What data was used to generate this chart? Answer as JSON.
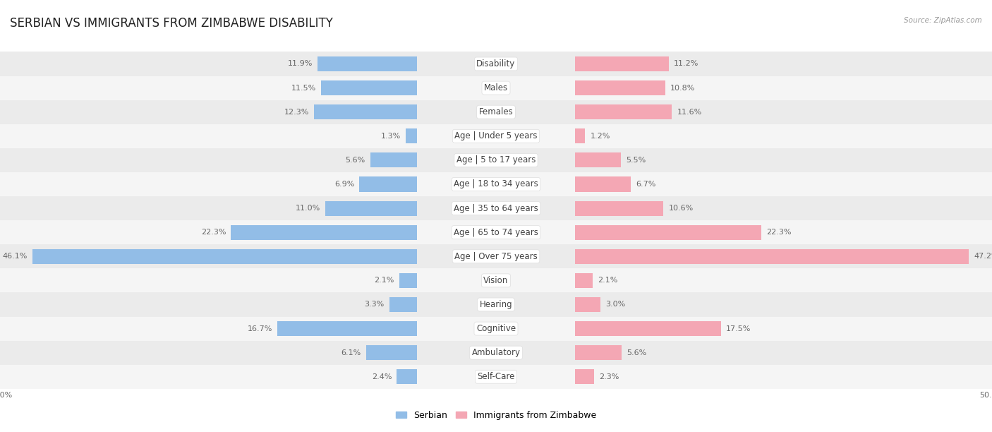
{
  "title": "SERBIAN VS IMMIGRANTS FROM ZIMBABWE DISABILITY",
  "source": "Source: ZipAtlas.com",
  "categories": [
    "Disability",
    "Males",
    "Females",
    "Age | Under 5 years",
    "Age | 5 to 17 years",
    "Age | 18 to 34 years",
    "Age | 35 to 64 years",
    "Age | 65 to 74 years",
    "Age | Over 75 years",
    "Vision",
    "Hearing",
    "Cognitive",
    "Ambulatory",
    "Self-Care"
  ],
  "serbian": [
    11.9,
    11.5,
    12.3,
    1.3,
    5.6,
    6.9,
    11.0,
    22.3,
    46.1,
    2.1,
    3.3,
    16.7,
    6.1,
    2.4
  ],
  "zimbabwe": [
    11.2,
    10.8,
    11.6,
    1.2,
    5.5,
    6.7,
    10.6,
    22.3,
    47.2,
    2.1,
    3.0,
    17.5,
    5.6,
    2.3
  ],
  "max_val": 50.0,
  "blue_color": "#92bde7",
  "pink_color": "#f4a7b4",
  "bar_height": 0.62,
  "row_bg_even": "#ebebeb",
  "row_bg_odd": "#f5f5f5",
  "title_fontsize": 12,
  "label_fontsize": 8.5,
  "value_fontsize": 8,
  "legend_fontsize": 9
}
